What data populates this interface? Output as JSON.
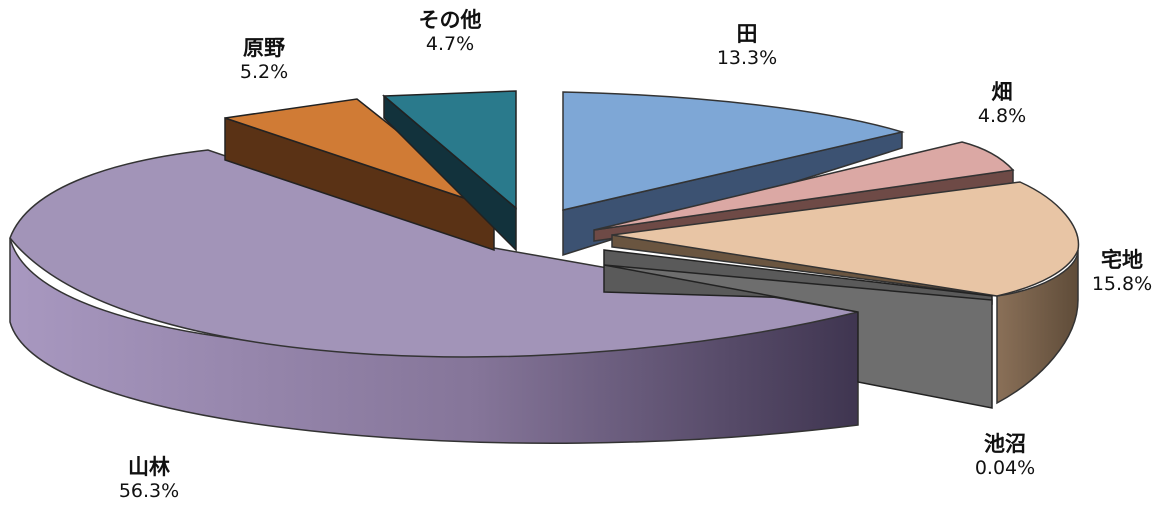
{
  "chart_data": {
    "type": "pie",
    "style": "3d-exploded",
    "title": "",
    "slices": [
      {
        "key": "ta",
        "label": "田",
        "value": 13.3,
        "value_text": "13.3%",
        "color": "#7ea7d6",
        "side": "#3c5272"
      },
      {
        "key": "hatake",
        "label": "畑",
        "value": 4.8,
        "value_text": "4.8%",
        "color": "#dba8a4",
        "side": "#6e4a46"
      },
      {
        "key": "takuchi",
        "label": "宅地",
        "value": 15.8,
        "value_text": "15.8%",
        "color": "#e8c5a5",
        "side": "#6a5540"
      },
      {
        "key": "chisho",
        "label": "池沼",
        "value": 0.04,
        "value_text": "0.04%",
        "color": "#6e6e6e",
        "side": "#6e6e6e"
      },
      {
        "key": "sanrin",
        "label": "山林",
        "value": 56.3,
        "value_text": "56.3%",
        "color": "#a294b8",
        "side": "#4f435f"
      },
      {
        "key": "genya",
        "label": "原野",
        "value": 5.2,
        "value_text": "5.2%",
        "color": "#d07b35",
        "side": "#5a3215"
      },
      {
        "key": "sonota",
        "label": "その他",
        "value": 4.7,
        "value_text": "4.7%",
        "color": "#2a7a8c",
        "side": "#12323c"
      }
    ],
    "legend": "none",
    "grid": false
  }
}
